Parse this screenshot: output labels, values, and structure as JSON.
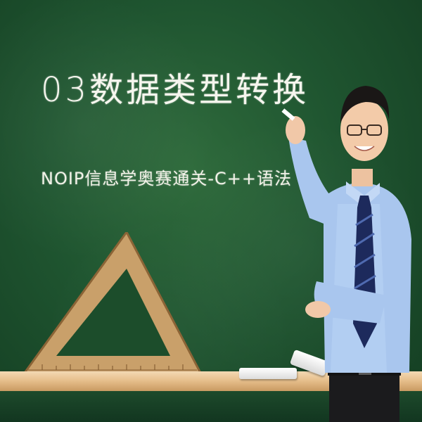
{
  "title": "03数据类型转换",
  "subtitle": "NOIP信息学奥赛通关-C++语法"
}
